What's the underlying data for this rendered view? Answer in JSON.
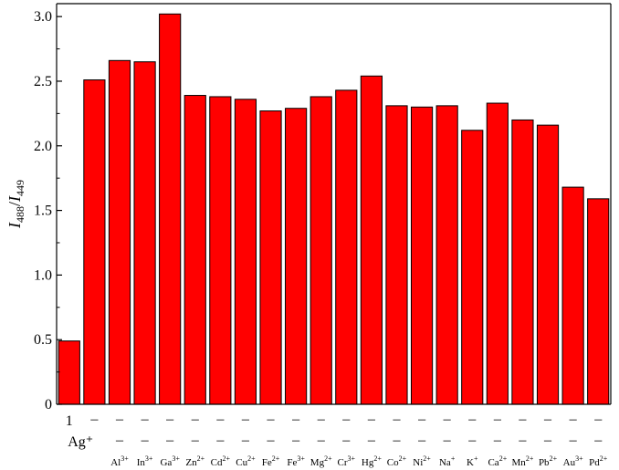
{
  "chart_data": {
    "type": "bar",
    "xlabel": "",
    "ylabel": {
      "italic_a": "I",
      "sub_a": "488",
      "slash": "/",
      "italic_b": "I",
      "sub_b": "449"
    },
    "ylim": [
      0,
      3.1
    ],
    "yticks": [
      "0",
      "0.5",
      "1.0",
      "1.5",
      "2.0",
      "2.5",
      "3.0"
    ],
    "row_labels": {
      "first": "1",
      "second": "Ag⁺"
    },
    "dash": "–",
    "categories": [
      {
        "base": "",
        "sup": ""
      },
      {
        "base": "",
        "sup": ""
      },
      {
        "base": "Al",
        "sup": "3+"
      },
      {
        "base": "In",
        "sup": "3+"
      },
      {
        "base": "Ga",
        "sup": "3+"
      },
      {
        "base": "Zn",
        "sup": "2+"
      },
      {
        "base": "Cd",
        "sup": "2+"
      },
      {
        "base": "Cu",
        "sup": "2+"
      },
      {
        "base": "Fe",
        "sup": "2+"
      },
      {
        "base": "Fe",
        "sup": "3+"
      },
      {
        "base": "Mg",
        "sup": "2+"
      },
      {
        "base": "Cr",
        "sup": "3+"
      },
      {
        "base": "Hg",
        "sup": "2+"
      },
      {
        "base": "Co",
        "sup": "2+"
      },
      {
        "base": "Ni",
        "sup": "2+"
      },
      {
        "base": "Na",
        "sup": "+"
      },
      {
        "base": "K",
        "sup": "+"
      },
      {
        "base": "Ca",
        "sup": "2+"
      },
      {
        "base": "Mn",
        "sup": "2+"
      },
      {
        "base": "Pb",
        "sup": "2+"
      },
      {
        "base": "Au",
        "sup": "3+"
      },
      {
        "base": "Pd",
        "sup": "2+"
      }
    ],
    "values": [
      0.49,
      2.51,
      2.66,
      2.65,
      3.02,
      2.39,
      2.38,
      2.36,
      2.27,
      2.29,
      2.38,
      2.43,
      2.54,
      2.31,
      2.3,
      2.31,
      2.12,
      2.33,
      2.2,
      2.16,
      1.68,
      1.59
    ],
    "bar_color": "#ff0000",
    "grid": false
  }
}
